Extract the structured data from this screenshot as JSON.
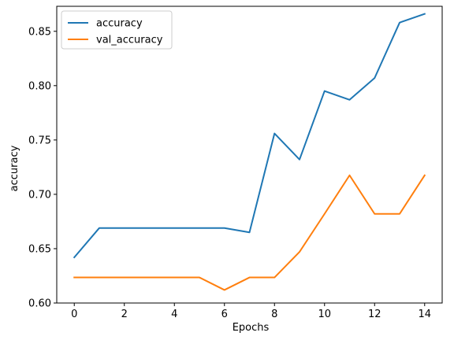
{
  "chart_data": {
    "type": "line",
    "title": "",
    "xlabel": "Epochs",
    "ylabel": "accuracy",
    "xlim": [
      -0.7,
      14.7
    ],
    "ylim": [
      0.6,
      0.873
    ],
    "xticks": [
      0,
      2,
      4,
      6,
      8,
      10,
      12,
      14
    ],
    "yticks": [
      0.6,
      0.65,
      0.7,
      0.75,
      0.8,
      0.85
    ],
    "grid": false,
    "legend_position": "top-left",
    "x": [
      0,
      1,
      2,
      3,
      4,
      5,
      6,
      7,
      8,
      9,
      10,
      11,
      12,
      13,
      14
    ],
    "series": [
      {
        "name": "accuracy",
        "color": "#1f77b4",
        "values": [
          0.642,
          0.669,
          0.669,
          0.669,
          0.669,
          0.669,
          0.669,
          0.665,
          0.756,
          0.732,
          0.795,
          0.787,
          0.807,
          0.858,
          0.866
        ]
      },
      {
        "name": "val_accuracy",
        "color": "#ff7f0e",
        "values": [
          0.6235,
          0.6235,
          0.6235,
          0.6235,
          0.6235,
          0.6235,
          0.612,
          0.6235,
          0.6235,
          0.647,
          0.682,
          0.7175,
          0.682,
          0.682,
          0.7175
        ]
      }
    ]
  }
}
